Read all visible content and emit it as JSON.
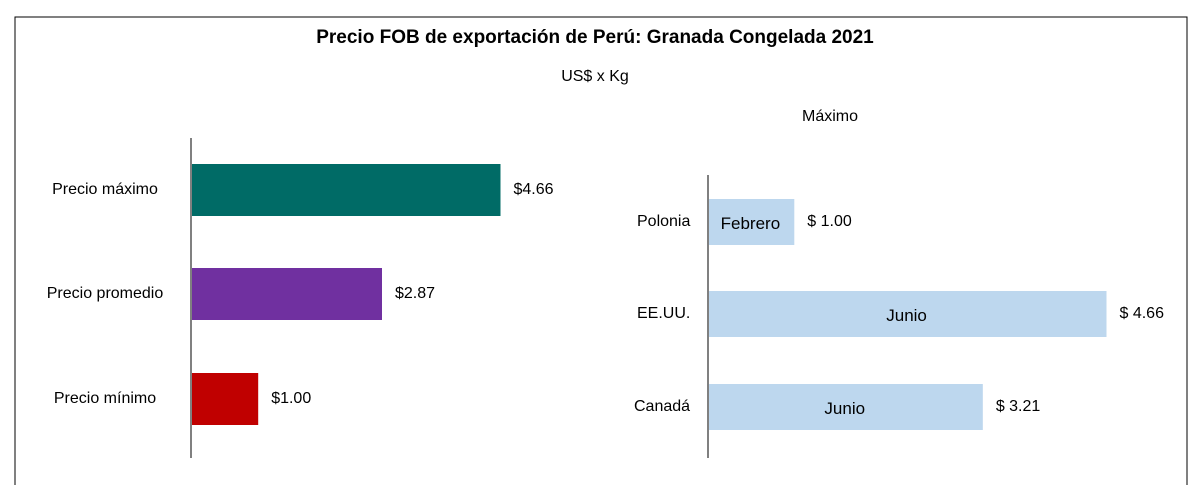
{
  "title": "Precio FOB de exportación de Perú: Granada Congelada 2021",
  "subtitle": "US$ x Kg",
  "chart_data": [
    {
      "type": "bar",
      "categories": [
        "Precio máximo",
        "Precio promedio",
        "Precio mínimo"
      ],
      "values": [
        4.66,
        2.87,
        1.0
      ],
      "value_labels": [
        "$4.66",
        "$2.87",
        "$1.00"
      ],
      "colors": [
        "#006b66",
        "#7030a0",
        "#c00000"
      ]
    },
    {
      "type": "bar",
      "title": "Máximo",
      "categories": [
        "Polonia",
        "EE.UU.",
        "Canadá"
      ],
      "values": [
        1.0,
        4.66,
        3.21
      ],
      "value_labels": [
        "$ 1.00",
        "$ 4.66",
        "$ 3.21"
      ],
      "annotations": [
        "Febrero",
        "Junio",
        "Junio"
      ],
      "color": "#bdd7ee"
    }
  ]
}
